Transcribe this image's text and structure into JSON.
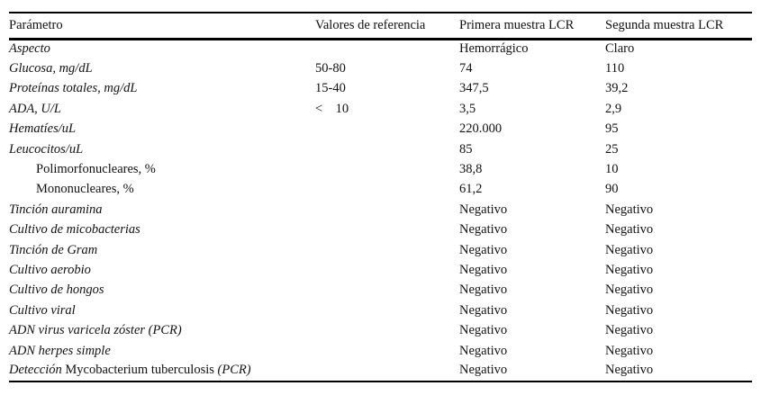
{
  "table": {
    "headers": {
      "parametro": "Parámetro",
      "valores": "Valores de referencia",
      "primera": "Primera muestra LCR",
      "segunda": "Segunda muestra LCR"
    },
    "rows": [
      {
        "param": "Aspecto",
        "ref": "",
        "first": "Hemorrágico",
        "second": "Claro"
      },
      {
        "param": "Glucosa, mg/dL",
        "ref": "50-80",
        "first": "74",
        "second": "110"
      },
      {
        "param": "Proteínas totales, mg/dL",
        "ref": "15-40",
        "first": "347,5",
        "second": "39,2"
      },
      {
        "param": "ADA, U/L",
        "ref": "<    10",
        "first": "3,5",
        "second": "2,9"
      },
      {
        "param": "Hematíes/uL",
        "ref": "",
        "first": "220.000",
        "second": "95"
      },
      {
        "param": "Leucocitos/uL",
        "ref": "",
        "first": "85",
        "second": "25"
      },
      {
        "param": "Polimorfonucleares, %",
        "ref": "",
        "first": "38,8",
        "second": "10"
      },
      {
        "param": "Mononucleares, %",
        "ref": "",
        "first": "61,2",
        "second": "90"
      },
      {
        "param": "Tinción auramina",
        "ref": "",
        "first": "Negativo",
        "second": "Negativo"
      },
      {
        "param": "Cultivo de micobacterias",
        "ref": "",
        "first": "Negativo",
        "second": "Negativo"
      },
      {
        "param": "Tinción de Gram",
        "ref": "",
        "first": "Negativo",
        "second": "Negativo"
      },
      {
        "param": "Cultivo aerobio",
        "ref": "",
        "first": "Negativo",
        "second": "Negativo"
      },
      {
        "param": "Cultivo de hongos",
        "ref": "",
        "first": "Negativo",
        "second": "Negativo"
      },
      {
        "param": "Cultivo viral",
        "ref": "",
        "first": "Negativo",
        "second": "Negativo"
      },
      {
        "param": "ADN virus varicela zóster (PCR)",
        "ref": "",
        "first": "Negativo",
        "second": "Negativo"
      },
      {
        "param": "ADN herpes simple",
        "ref": "",
        "first": "Negativo",
        "second": "Negativo"
      },
      {
        "param_parts": [
          {
            "text": "Detección "
          },
          {
            "text": "Mycobacterium tuberculosis "
          },
          {
            "text": "(PCR)"
          }
        ],
        "ref": "",
        "first": "Negativo",
        "second": "Negativo"
      }
    ]
  }
}
